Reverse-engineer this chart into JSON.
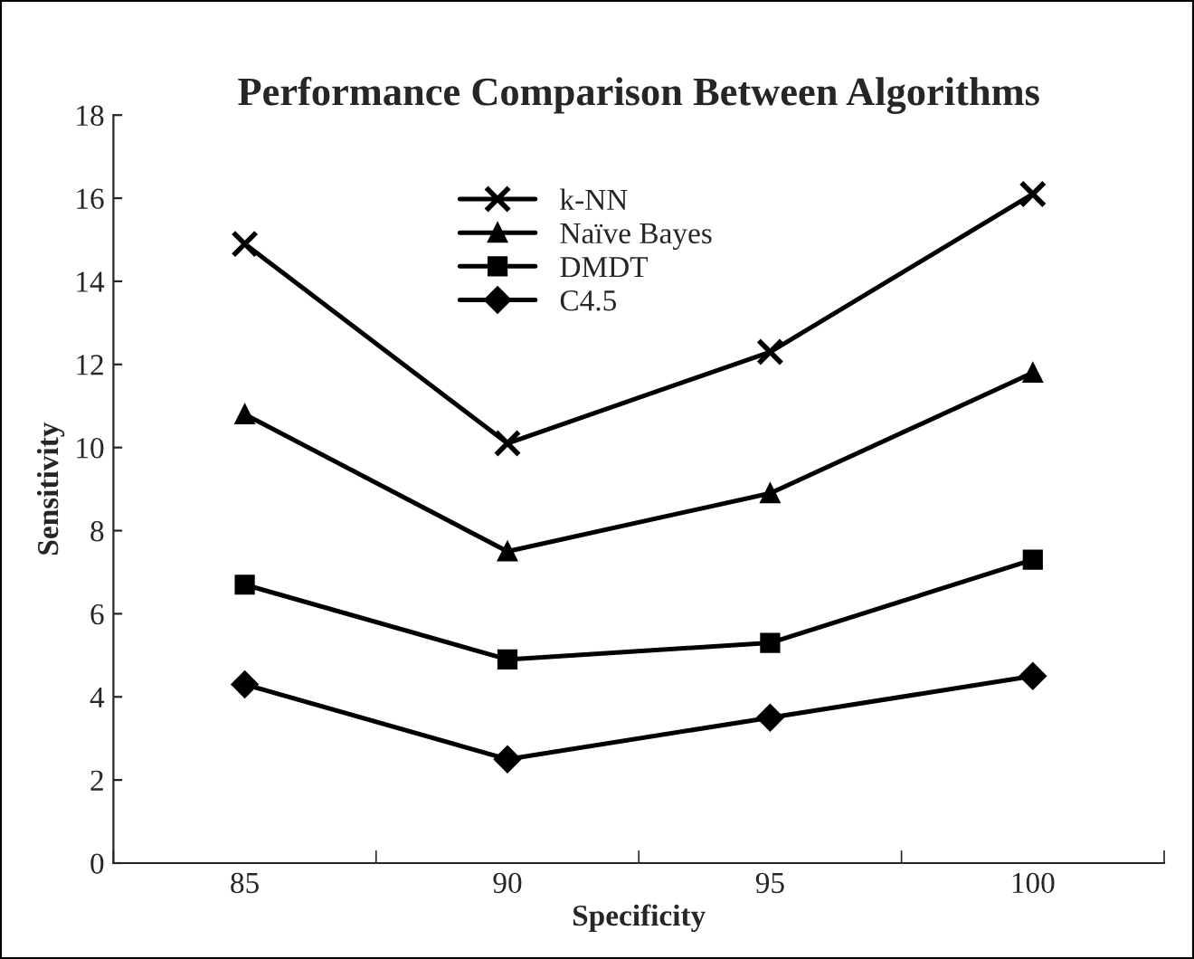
{
  "chart_data": {
    "type": "line",
    "title": "Performance Comparison Between Algorithms",
    "xlabel": "Specificity",
    "ylabel": "Sensitivity",
    "categories": [
      "85",
      "90",
      "95",
      "100"
    ],
    "series": [
      {
        "name": "k-NN",
        "color": "#000000",
        "marker": "cross",
        "values": [
          14.9,
          10.1,
          12.3,
          16.1
        ]
      },
      {
        "name": "Naïve Bayes",
        "color": "#000000",
        "marker": "triangle",
        "values": [
          10.8,
          7.5,
          8.9,
          11.8
        ]
      },
      {
        "name": "DMDT",
        "color": "#000000",
        "marker": "square",
        "values": [
          6.7,
          4.9,
          5.3,
          7.3
        ]
      },
      {
        "name": "C4.5",
        "color": "#000000",
        "marker": "diamond",
        "values": [
          4.3,
          2.5,
          3.5,
          4.5
        ]
      }
    ],
    "ylim": [
      0,
      18
    ],
    "yticks": [
      0,
      2,
      4,
      6,
      8,
      10,
      12,
      14,
      16,
      18
    ],
    "grid": false,
    "legend": "top",
    "line_style": "solid"
  }
}
